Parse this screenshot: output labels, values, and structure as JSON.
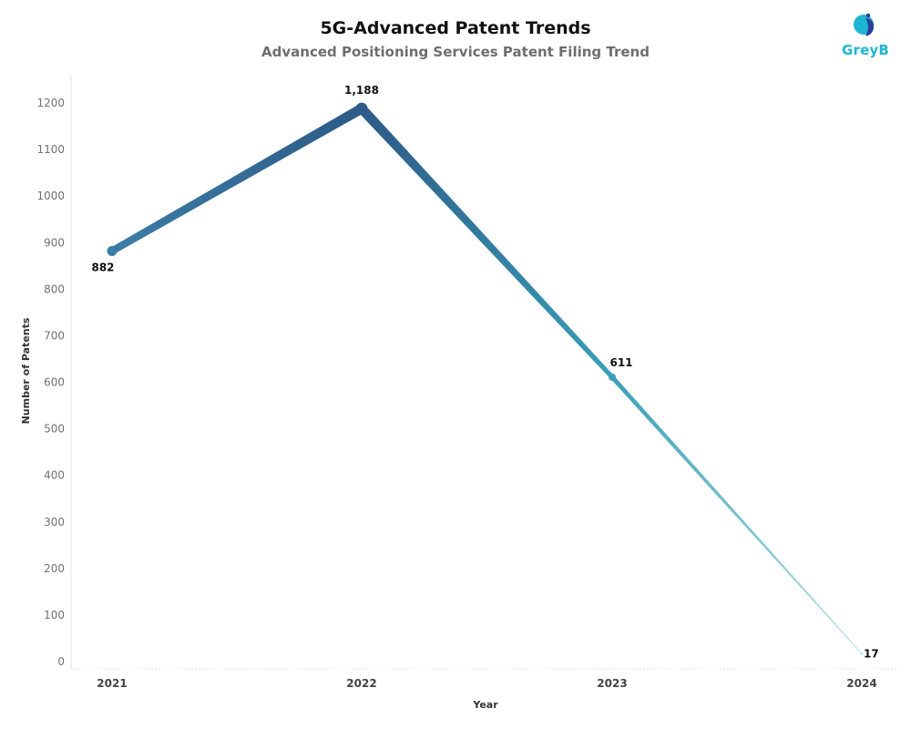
{
  "header": {
    "title": "5G-Advanced Patent Trends",
    "subtitle": "Advanced Positioning Services Patent Filing Trend"
  },
  "logo": {
    "text": "GreyB",
    "icon": "greyb-logo-icon",
    "color": "#1eb5d4"
  },
  "chart_data": {
    "type": "line",
    "title": "5G-Advanced Patent Trends",
    "subtitle": "Advanced Positioning Services Patent Filing Trend",
    "xlabel": "Year",
    "ylabel": "Number of Patents",
    "categories": [
      "2021",
      "2022",
      "2023",
      "2024"
    ],
    "series": [
      {
        "values": [
          882,
          1188,
          611,
          17
        ],
        "data_labels": [
          "882",
          "1,188",
          "611",
          "17"
        ]
      }
    ],
    "ylim": [
      0,
      1250
    ],
    "yticks": [
      0,
      100,
      200,
      300,
      400,
      500,
      600,
      700,
      800,
      900,
      1000,
      1100,
      1200
    ],
    "grid": false,
    "colors": {
      "dark": "#2d5a87",
      "mid": "#3a88a8",
      "light": "#a9d8de"
    }
  }
}
